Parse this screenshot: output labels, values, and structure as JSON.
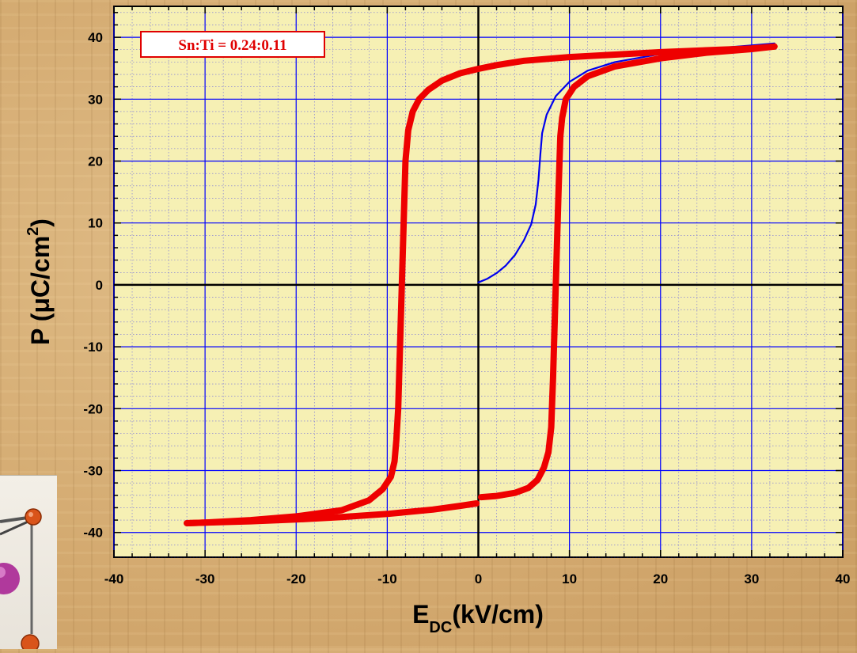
{
  "chart_data": {
    "type": "line",
    "title": "",
    "xlabel": {
      "main": "E",
      "sub": "DC",
      "rest": "(kV/cm)"
    },
    "ylabel": {
      "main": "P (μC/cm",
      "sup": "2",
      "rest": ")"
    },
    "xlim": [
      -40,
      40
    ],
    "ylim": [
      -44,
      45
    ],
    "xticks": [
      -40,
      -30,
      -20,
      -10,
      0,
      10,
      20,
      30,
      40
    ],
    "yticks": [
      -40,
      -30,
      -20,
      -10,
      0,
      10,
      20,
      30,
      40
    ],
    "grid": true,
    "annotation": "Sn:Ti = 0.24:0.11",
    "colors": {
      "hysteresis": "#ee0000",
      "initial": "#0000ee",
      "grid": "#0000ff",
      "axes": "#000000",
      "annotation_border": "#e00000"
    },
    "series": [
      {
        "color": "#0000ee",
        "x": [
          0,
          1,
          2,
          3,
          4,
          5,
          5.8,
          6.3,
          6.6,
          6.8,
          7.0,
          7.5,
          8.5,
          10,
          12,
          15,
          20,
          25,
          30,
          32.5
        ],
        "y": [
          0.4,
          1.0,
          1.9,
          3.1,
          4.8,
          7.2,
          9.8,
          13.0,
          17.0,
          21.0,
          24.5,
          27.5,
          30.5,
          32.8,
          34.6,
          36.0,
          37.3,
          38.1,
          38.7,
          39.0
        ]
      },
      {
        "color": "#ee0000",
        "x": [
          32.5,
          30,
          25,
          20,
          15,
          10,
          5,
          2,
          0,
          -2,
          -4,
          -5.5,
          -6.5,
          -7.2,
          -7.7,
          -8.0,
          -8.2,
          -8.4,
          -8.6,
          -8.8,
          -9.0,
          -9.2,
          -9.6,
          -10.5,
          -12,
          -15,
          -20,
          -25,
          -30,
          -32
        ],
        "y": [
          38.5,
          38.2,
          37.9,
          37.6,
          37.2,
          36.8,
          36.2,
          35.5,
          34.9,
          34.2,
          33.0,
          31.5,
          30.0,
          28.0,
          25.0,
          20.0,
          10.0,
          0.0,
          -10.0,
          -20.0,
          -25.0,
          -28.5,
          -31.0,
          -33.0,
          -34.8,
          -36.4,
          -37.4,
          -38.0,
          -38.4,
          -38.5
        ]
      },
      {
        "color": "#ee0000",
        "x": [
          -32,
          -30,
          -25,
          -20,
          -15,
          -10,
          -5,
          -2,
          -0.2
        ],
        "y": [
          -38.5,
          -38.4,
          -38.2,
          -37.9,
          -37.5,
          -37.0,
          -36.3,
          -35.7,
          -35.3
        ]
      },
      {
        "color": "#ee0000",
        "x": [
          0.3,
          2,
          4,
          5.5,
          6.5,
          7.2,
          7.7,
          8.0,
          8.2,
          8.4,
          8.6,
          8.8,
          9.0,
          9.2,
          9.6,
          10.5,
          12,
          15,
          20,
          25,
          30,
          32.5
        ],
        "y": [
          -34.3,
          -34.1,
          -33.6,
          -32.8,
          -31.5,
          -29.5,
          -27.0,
          -23.0,
          -15.0,
          -5.0,
          5.0,
          15.0,
          24.0,
          27.0,
          30.0,
          32.0,
          33.7,
          35.3,
          36.6,
          37.5,
          38.1,
          38.5
        ]
      }
    ]
  }
}
